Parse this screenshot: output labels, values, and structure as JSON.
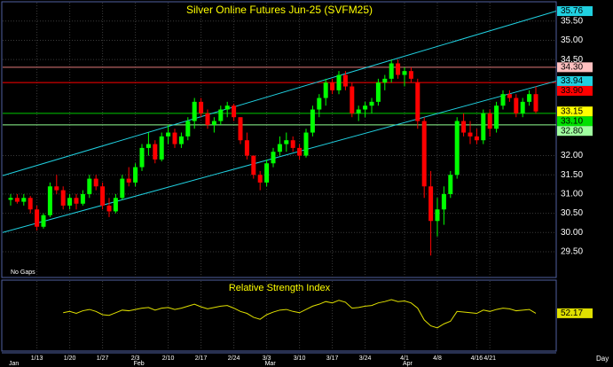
{
  "chart_data": {
    "type": "candlestick",
    "title": "Silver Online Futures Jun-25 (SVFM25)",
    "note": "No Gaps",
    "x_unit": "Day",
    "categories": [
      null,
      null,
      null,
      null,
      "1/13",
      null,
      null,
      null,
      null,
      "1/20",
      null,
      null,
      null,
      null,
      "1/27",
      null,
      null,
      null,
      null,
      "2/3",
      null,
      null,
      null,
      null,
      "2/10",
      null,
      null,
      null,
      null,
      "2/17",
      null,
      null,
      null,
      null,
      "2/24",
      null,
      null,
      null,
      null,
      "3/3",
      null,
      null,
      null,
      null,
      "3/10",
      null,
      null,
      null,
      null,
      "3/17",
      null,
      null,
      null,
      null,
      "3/24",
      null,
      null,
      null,
      null,
      null,
      "4/1",
      null,
      null,
      null,
      null,
      "4/8",
      null,
      null,
      null,
      null,
      null,
      "4/16",
      null,
      "4/21",
      null,
      null,
      null,
      null,
      null,
      null,
      null
    ],
    "months": [
      "Jan",
      null,
      null,
      null,
      null,
      null,
      null,
      null,
      null,
      null,
      null,
      null,
      null,
      null,
      null,
      null,
      null,
      null,
      null,
      "Feb",
      null,
      null,
      null,
      null,
      null,
      null,
      null,
      null,
      null,
      null,
      null,
      null,
      null,
      null,
      null,
      null,
      null,
      null,
      null,
      "Mar",
      null,
      null,
      null,
      null,
      null,
      null,
      null,
      null,
      null,
      null,
      null,
      null,
      null,
      null,
      null,
      null,
      null,
      null,
      null,
      null,
      "Apr",
      null,
      null,
      null,
      null,
      null,
      null,
      null,
      null,
      null,
      null,
      null,
      null,
      null,
      null,
      null,
      null,
      null,
      null,
      null,
      null
    ],
    "open": [
      30.85,
      30.9,
      30.8,
      30.9,
      30.6,
      30.15,
      30.45,
      31.2,
      31.1,
      30.7,
      30.9,
      30.75,
      31.0,
      31.4,
      31.2,
      30.7,
      30.55,
      30.9,
      31.4,
      31.3,
      31.7,
      32.2,
      32.3,
      31.9,
      32.5,
      32.6,
      32.3,
      32.5,
      32.9,
      33.4,
      33.1,
      32.8,
      32.9,
      33.2,
      33.3,
      33.0,
      32.4,
      32.0,
      31.5,
      31.3,
      31.8,
      32.1,
      32.3,
      32.4,
      32.2,
      32.0,
      32.6,
      33.2,
      33.5,
      33.9,
      33.7,
      34.1,
      33.8,
      33.1,
      33.2,
      33.3,
      33.4,
      33.9,
      34.0,
      34.4,
      34.1,
      34.2,
      33.9,
      32.9,
      31.2,
      30.3,
      30.6,
      31.0,
      31.5,
      32.9,
      32.6,
      32.5,
      32.4,
      33.1,
      32.7,
      33.3,
      33.6,
      33.5,
      33.1,
      33.4,
      33.6
    ],
    "high": [
      31.0,
      31.0,
      31.0,
      30.95,
      30.7,
      30.5,
      31.3,
      31.5,
      31.2,
      31.0,
      31.0,
      31.1,
      31.5,
      31.5,
      31.3,
      30.9,
      31.0,
      31.5,
      31.7,
      31.8,
      32.3,
      32.6,
      32.4,
      32.6,
      32.8,
      32.7,
      32.6,
      33.0,
      33.5,
      33.5,
      33.2,
      33.0,
      33.3,
      33.4,
      33.35,
      33.0,
      32.6,
      32.0,
      31.6,
      31.9,
      32.2,
      32.5,
      32.6,
      32.5,
      32.3,
      32.7,
      33.3,
      33.6,
      34.0,
      34.0,
      34.2,
      34.2,
      33.9,
      33.3,
      33.4,
      33.5,
      34.0,
      34.1,
      34.5,
      34.5,
      34.3,
      34.3,
      34.0,
      33.0,
      31.6,
      30.9,
      31.2,
      31.6,
      33.0,
      33.1,
      32.9,
      32.7,
      33.2,
      33.2,
      33.4,
      33.7,
      33.7,
      33.6,
      33.5,
      33.7,
      33.8
    ],
    "low": [
      30.7,
      30.75,
      30.7,
      30.5,
      30.05,
      30.1,
      30.4,
      31.0,
      30.6,
      30.6,
      30.6,
      30.7,
      30.9,
      31.1,
      30.6,
      30.4,
      30.5,
      30.85,
      31.2,
      31.2,
      31.6,
      32.0,
      31.8,
      31.85,
      32.3,
      32.2,
      32.2,
      32.4,
      32.7,
      33.0,
      32.7,
      32.6,
      32.8,
      33.0,
      32.9,
      32.3,
      31.9,
      31.4,
      31.1,
      31.2,
      31.7,
      32.0,
      32.1,
      32.1,
      31.9,
      31.95,
      32.5,
      33.0,
      33.3,
      33.6,
      33.6,
      33.7,
      33.0,
      32.9,
      33.0,
      33.1,
      33.3,
      33.7,
      33.9,
      34.0,
      33.8,
      33.9,
      32.7,
      30.9,
      29.4,
      29.9,
      30.2,
      30.9,
      31.4,
      32.5,
      32.3,
      32.3,
      32.3,
      32.5,
      32.6,
      33.2,
      33.4,
      33.0,
      33.0,
      33.3,
      33.1
    ],
    "close": [
      30.9,
      30.8,
      30.9,
      30.6,
      30.15,
      30.45,
      31.2,
      31.1,
      30.7,
      30.9,
      30.75,
      31.0,
      31.4,
      31.2,
      30.7,
      30.55,
      30.9,
      31.4,
      31.3,
      31.7,
      32.2,
      32.3,
      31.9,
      32.5,
      32.6,
      32.3,
      32.5,
      32.9,
      33.4,
      33.1,
      32.8,
      32.9,
      33.2,
      33.3,
      33.0,
      32.4,
      32.0,
      31.5,
      31.3,
      31.8,
      32.1,
      32.3,
      32.4,
      32.2,
      32.0,
      32.6,
      33.2,
      33.5,
      33.9,
      33.7,
      34.1,
      33.8,
      33.1,
      33.2,
      33.3,
      33.4,
      33.9,
      34.0,
      34.4,
      34.1,
      34.2,
      34.0,
      32.9,
      31.2,
      30.3,
      30.6,
      31.0,
      31.5,
      32.9,
      32.6,
      32.5,
      32.4,
      33.1,
      32.7,
      33.3,
      33.6,
      33.5,
      33.1,
      33.4,
      33.6,
      33.15
    ],
    "up_color": "#00ff00",
    "down_color": "#ff0000",
    "ylim": [
      28.83,
      35.98
    ],
    "yticks": [
      {
        "value": 35.5,
        "label": "35.50"
      },
      {
        "value": 35.0,
        "label": "35.00"
      },
      {
        "value": 34.5,
        "label": "34.50"
      },
      {
        "value": 32.0,
        "label": "32.00"
      },
      {
        "value": 31.5,
        "label": "31.50"
      },
      {
        "value": 31.0,
        "label": "31.00"
      },
      {
        "value": 30.5,
        "label": "30.50"
      },
      {
        "value": 30.0,
        "label": "30.00"
      },
      {
        "value": 29.5,
        "label": "29.50"
      }
    ],
    "grid": true,
    "last_label_color": "#ffff00",
    "levels": [
      {
        "value": 34.3,
        "label": "34.30",
        "color": "#e07878",
        "label_bg": "#ffc0c0"
      },
      {
        "value": 33.9,
        "label": "33.90",
        "color": "#ff0000",
        "label_bg": "#ff0000"
      },
      {
        "value": 33.1,
        "label": "33.10",
        "color": "#00c800",
        "label_bg": "#00e000"
      },
      {
        "value": 32.8,
        "label": "32.80",
        "color": "#90ff90",
        "label_bg": "#a0ffa0"
      }
    ],
    "channel_color": "#20d0e0",
    "channels": [
      {
        "start": 31.48,
        "end": {
          "value": 35.76,
          "label": "35.76"
        }
      },
      {
        "start": 30.0,
        "end": {
          "value": 33.94,
          "label": "33.94"
        }
      }
    ],
    "rsi": {
      "title": "Relative Strength Index",
      "color": "#e0e000",
      "ylim": [
        0,
        100
      ],
      "values": [
        null,
        null,
        null,
        null,
        null,
        null,
        null,
        null,
        53,
        55,
        52,
        56,
        58,
        55,
        50,
        49,
        53,
        57,
        56,
        58,
        60,
        61,
        57,
        60,
        61,
        58,
        60,
        63,
        66,
        62,
        59,
        61,
        63,
        64,
        60,
        55,
        52,
        46,
        43,
        50,
        54,
        57,
        58,
        55,
        53,
        58,
        63,
        66,
        70,
        68,
        72,
        69,
        60,
        61,
        63,
        64,
        68,
        70,
        73,
        70,
        71,
        68,
        60,
        42,
        33,
        30,
        36,
        40,
        55,
        54,
        53,
        52,
        57,
        55,
        58,
        60,
        59,
        56,
        57,
        58,
        52.17
      ]
    }
  }
}
